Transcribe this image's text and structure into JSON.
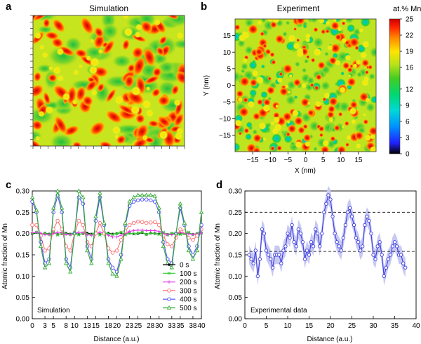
{
  "panels": {
    "a": {
      "letter": "a",
      "title": "Simulation"
    },
    "b": {
      "letter": "b",
      "title": "Experiment",
      "colorbar_title": "at.% Mn"
    },
    "c": {
      "letter": "c"
    },
    "d": {
      "letter": "d"
    }
  },
  "colors": {
    "map_scale": [
      "#000000",
      "#2a2aff",
      "#00b7ff",
      "#00e5b0",
      "#2fd12f",
      "#9bdc1c",
      "#e6ea14",
      "#ffa500",
      "#ff3b00",
      "#cc0000"
    ],
    "series": [
      "#000000",
      "#33cc33",
      "#e83be8",
      "#ff7070",
      "#4d4dff",
      "#33aa33"
    ],
    "band": "#c7c9f2",
    "exp_line": "#3b3be0"
  },
  "chart_data": [
    {
      "id": "b",
      "type": "heatmap",
      "title": "Experiment",
      "xlabel": "X (nm)",
      "ylabel": "Y (nm)",
      "xlim": [
        -20,
        20
      ],
      "ylim": [
        -20,
        20
      ],
      "xticks": [
        -15,
        -10,
        -5,
        0,
        5,
        10,
        15
      ],
      "yticks": [
        -15,
        -10,
        -5,
        0,
        5,
        10,
        15
      ],
      "colorbar": {
        "title": "at.% Mn",
        "range": [
          0,
          25
        ],
        "ticks": [
          0,
          3,
          6,
          9,
          12,
          16,
          19,
          22,
          25
        ]
      }
    },
    {
      "id": "c",
      "type": "line",
      "title": "",
      "annotation": "Simulation",
      "xlabel": "Distance (a.u.)",
      "ylabel": "Atomic fraction of Mn",
      "xlim": [
        0,
        40
      ],
      "ylim": [
        0,
        0.3
      ],
      "xticks": [
        0,
        3,
        5,
        8,
        10,
        13,
        15,
        18,
        20,
        23,
        25,
        28,
        30,
        33,
        35,
        38,
        40
      ],
      "yticks": [
        "0.00",
        "0.05",
        "0.10",
        "0.15",
        "0.20",
        "0.25",
        "0.30"
      ],
      "legend_position": "bottom-right",
      "x": [
        0,
        1,
        2,
        3,
        4,
        5,
        6,
        7,
        8,
        9,
        10,
        11,
        12,
        13,
        14,
        15,
        16,
        17,
        18,
        19,
        20,
        21,
        22,
        23,
        24,
        25,
        26,
        27,
        28,
        29,
        30,
        31,
        32,
        33,
        34,
        35,
        36,
        37,
        38,
        39,
        40
      ],
      "series": [
        {
          "name": "0 s",
          "values": [
            0.2,
            0.202,
            0.198,
            0.201,
            0.199,
            0.202,
            0.198,
            0.2,
            0.201,
            0.199,
            0.202,
            0.198,
            0.2,
            0.201,
            0.199,
            0.202,
            0.198,
            0.2,
            0.201,
            0.199,
            0.2,
            0.202,
            0.198,
            0.201,
            0.199,
            0.2,
            0.202,
            0.198,
            0.201,
            0.2,
            0.199,
            0.202,
            0.198,
            0.2,
            0.201,
            0.199,
            0.2,
            0.202,
            0.198,
            0.2,
            0.201
          ]
        },
        {
          "name": "100 s",
          "values": [
            0.2,
            0.203,
            0.197,
            0.201,
            0.198,
            0.203,
            0.197,
            0.201,
            0.2,
            0.198,
            0.203,
            0.197,
            0.201,
            0.199,
            0.198,
            0.203,
            0.197,
            0.201,
            0.2,
            0.198,
            0.2,
            0.203,
            0.197,
            0.201,
            0.199,
            0.201,
            0.203,
            0.198,
            0.201,
            0.2,
            0.198,
            0.203,
            0.197,
            0.201,
            0.2,
            0.198,
            0.2,
            0.203,
            0.197,
            0.2,
            0.201
          ]
        },
        {
          "name": "200 s",
          "values": [
            0.202,
            0.203,
            0.201,
            0.197,
            0.197,
            0.2,
            0.203,
            0.202,
            0.198,
            0.197,
            0.2,
            0.203,
            0.202,
            0.197,
            0.196,
            0.199,
            0.203,
            0.201,
            0.196,
            0.192,
            0.192,
            0.196,
            0.2,
            0.205,
            0.207,
            0.208,
            0.208,
            0.207,
            0.207,
            0.207,
            0.205,
            0.2,
            0.197,
            0.197,
            0.201,
            0.203,
            0.201,
            0.199,
            0.198,
            0.199,
            0.201
          ]
        },
        {
          "name": "300 s",
          "values": [
            0.22,
            0.22,
            0.195,
            0.16,
            0.165,
            0.21,
            0.23,
            0.21,
            0.17,
            0.16,
            0.2,
            0.23,
            0.22,
            0.18,
            0.17,
            0.2,
            0.225,
            0.2,
            0.165,
            0.155,
            0.16,
            0.185,
            0.205,
            0.22,
            0.225,
            0.228,
            0.227,
            0.225,
            0.226,
            0.227,
            0.22,
            0.195,
            0.175,
            0.17,
            0.19,
            0.21,
            0.205,
            0.19,
            0.185,
            0.195,
            0.21
          ]
        },
        {
          "name": "400 s",
          "values": [
            0.275,
            0.25,
            0.18,
            0.13,
            0.14,
            0.25,
            0.29,
            0.25,
            0.14,
            0.12,
            0.2,
            0.285,
            0.27,
            0.17,
            0.14,
            0.23,
            0.285,
            0.22,
            0.14,
            0.12,
            0.11,
            0.15,
            0.22,
            0.265,
            0.275,
            0.278,
            0.28,
            0.28,
            0.278,
            0.275,
            0.25,
            0.18,
            0.14,
            0.13,
            0.2,
            0.26,
            0.22,
            0.17,
            0.15,
            0.17,
            0.22
          ]
        },
        {
          "name": "500 s",
          "values": [
            0.285,
            0.255,
            0.17,
            0.12,
            0.13,
            0.26,
            0.3,
            0.26,
            0.13,
            0.11,
            0.2,
            0.3,
            0.285,
            0.16,
            0.13,
            0.24,
            0.295,
            0.225,
            0.13,
            0.105,
            0.1,
            0.14,
            0.225,
            0.275,
            0.285,
            0.29,
            0.29,
            0.29,
            0.29,
            0.288,
            0.26,
            0.17,
            0.13,
            0.12,
            0.2,
            0.27,
            0.225,
            0.16,
            0.14,
            0.16,
            0.25
          ]
        }
      ]
    },
    {
      "id": "d",
      "type": "line",
      "title": "",
      "annotation": "Experimental data",
      "xlabel": "Distance (a.u.)",
      "ylabel": "Atomic fraction of Mn",
      "xlim": [
        0,
        40
      ],
      "ylim": [
        0,
        0.3
      ],
      "xticks": [
        0,
        5,
        10,
        15,
        20,
        25,
        30,
        35,
        40
      ],
      "yticks": [
        "0.00",
        "0.05",
        "0.10",
        "0.15",
        "0.20",
        "0.25",
        "0.30"
      ],
      "reference_lines": [
        0.25,
        0.158
      ],
      "x": [
        1,
        1.5,
        2,
        2.5,
        3,
        3.5,
        4,
        4.5,
        5,
        5.5,
        6,
        6.5,
        7,
        7.5,
        8,
        8.5,
        9,
        9.5,
        10,
        10.5,
        11,
        11.5,
        12,
        12.5,
        13,
        13.5,
        14,
        14.5,
        15,
        15.5,
        16,
        16.5,
        17,
        17.5,
        18,
        18.5,
        19,
        19.5,
        20,
        20.5,
        21,
        21.5,
        22,
        22.5,
        23,
        23.5,
        24,
        24.5,
        25,
        25.5,
        26,
        26.5,
        27,
        27.5,
        28,
        28.5,
        29,
        29.5,
        30,
        30.5,
        31,
        31.5,
        32,
        32.5,
        33,
        33.5,
        34,
        34.5,
        35,
        35.5,
        36,
        36.5,
        37,
        37.5
      ],
      "values": [
        0.15,
        0.14,
        0.13,
        0.16,
        0.1,
        0.14,
        0.21,
        0.2,
        0.16,
        0.15,
        0.14,
        0.12,
        0.15,
        0.15,
        0.15,
        0.13,
        0.16,
        0.17,
        0.2,
        0.19,
        0.22,
        0.18,
        0.17,
        0.21,
        0.2,
        0.18,
        0.14,
        0.16,
        0.15,
        0.18,
        0.17,
        0.21,
        0.2,
        0.17,
        0.2,
        0.25,
        0.27,
        0.29,
        0.28,
        0.24,
        0.2,
        0.18,
        0.17,
        0.16,
        0.19,
        0.22,
        0.25,
        0.26,
        0.24,
        0.22,
        0.19,
        0.18,
        0.16,
        0.17,
        0.22,
        0.24,
        0.23,
        0.2,
        0.15,
        0.14,
        0.17,
        0.18,
        0.15,
        0.1,
        0.12,
        0.14,
        0.15,
        0.17,
        0.18,
        0.17,
        0.15,
        0.15,
        0.13,
        0.12
      ],
      "band_halfwidth": 0.022
    }
  ]
}
